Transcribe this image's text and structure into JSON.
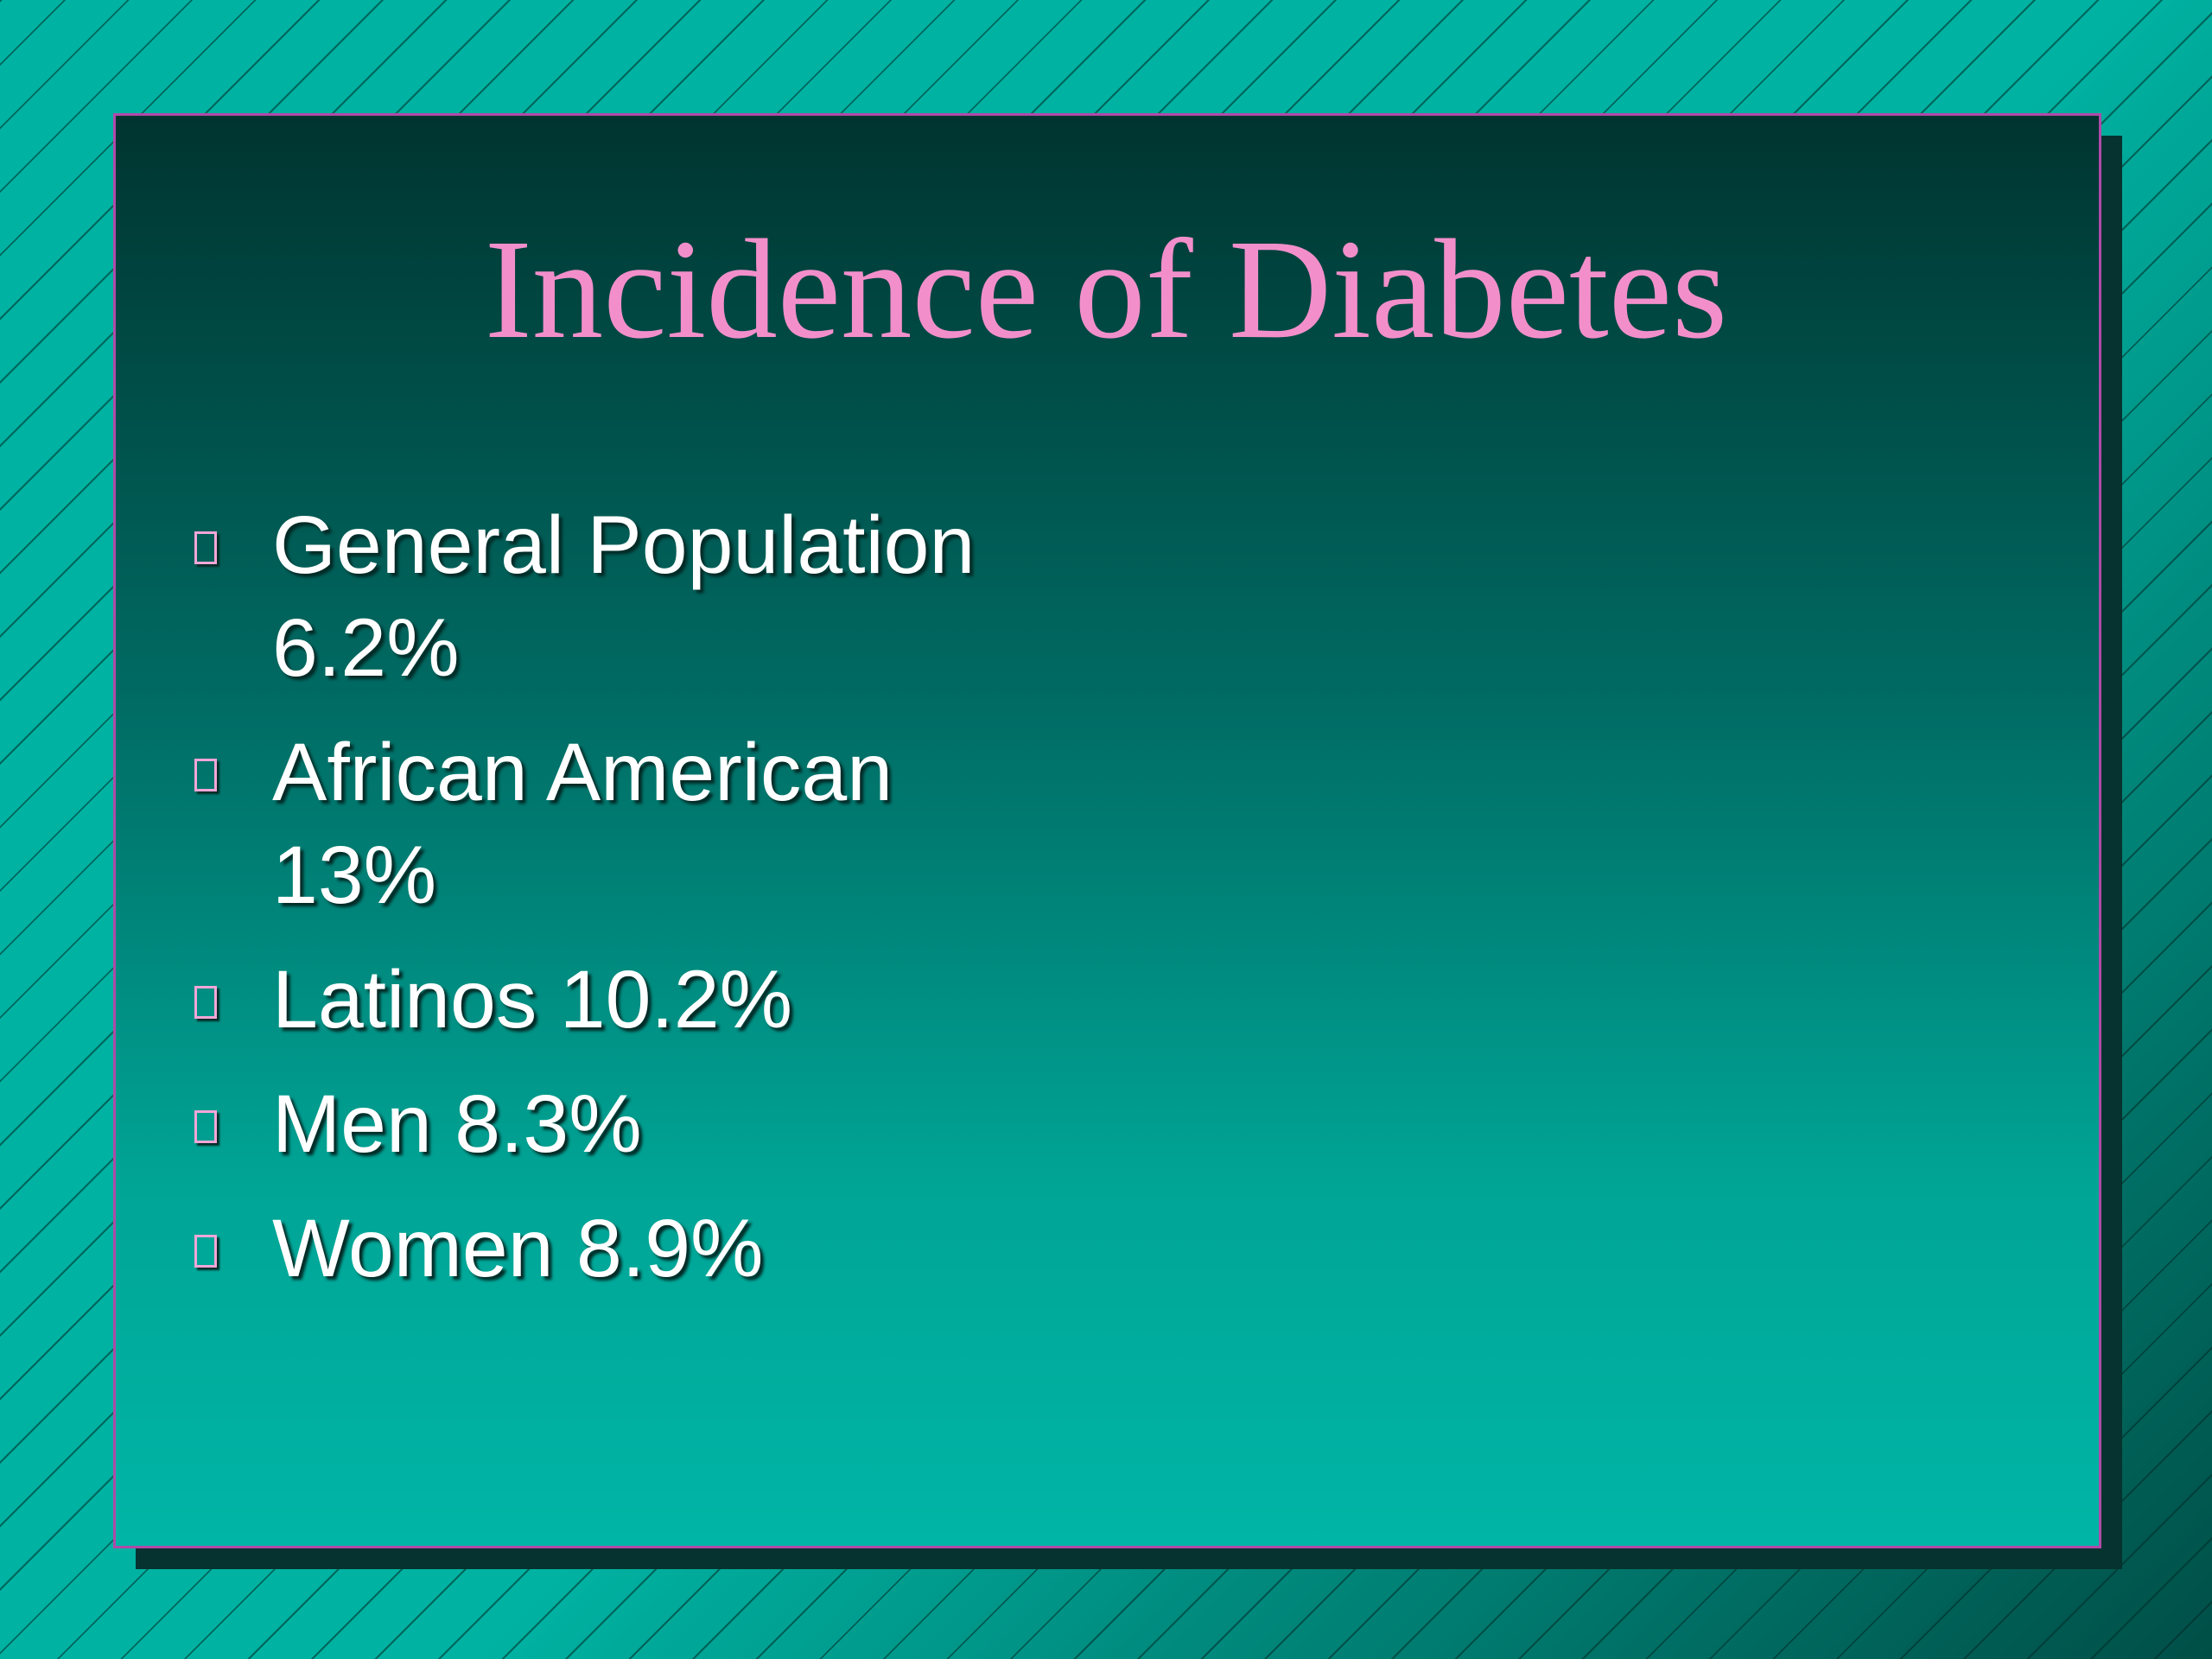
{
  "slide": {
    "title": "Incidence of Diabetes",
    "bullets": [
      [
        "General Population",
        "6.2%"
      ],
      [
        "African American",
        "13%"
      ],
      [
        "Latinos 10.2%"
      ],
      [
        "Men 8.3%"
      ],
      [
        "Women 8.9%"
      ]
    ]
  }
}
